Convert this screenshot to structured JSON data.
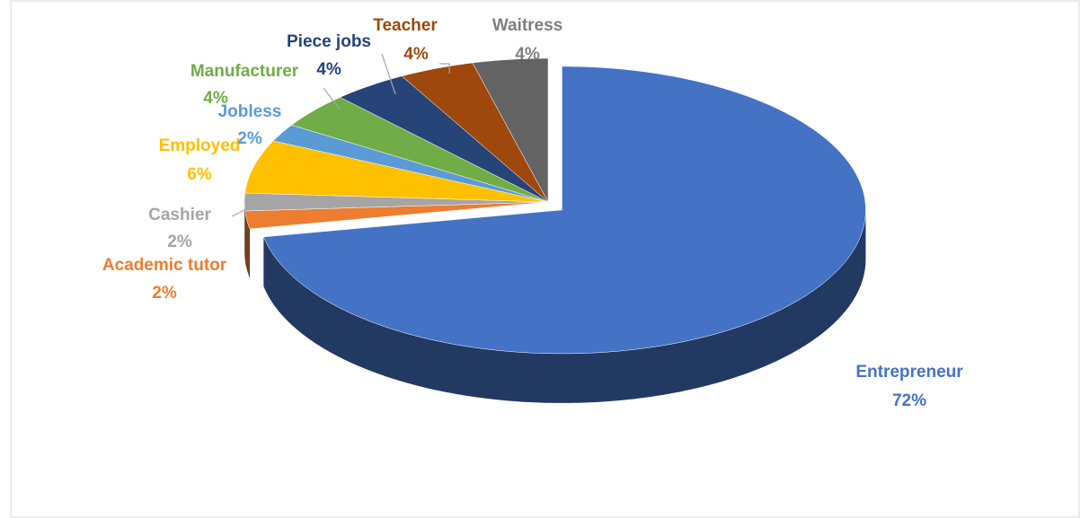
{
  "chart_data": {
    "type": "pie3d",
    "categories": [
      "Entrepreneur",
      "Academic tutor",
      "Cashier",
      "Employed",
      "Jobless",
      "Manufacturer",
      "Piece jobs",
      "Teacher",
      "Waitress"
    ],
    "values": [
      72,
      2,
      2,
      6,
      2,
      4,
      4,
      4,
      4
    ],
    "value_labels": [
      "72%",
      "2%",
      "2%",
      "6%",
      "2%",
      "4%",
      "4%",
      "4%",
      "4%"
    ],
    "colors": [
      "#4472c4",
      "#ed7d31",
      "#a5a5a5",
      "#ffc000",
      "#5b9bd5",
      "#70ad47",
      "#264478",
      "#9e480e",
      "#636363"
    ]
  }
}
